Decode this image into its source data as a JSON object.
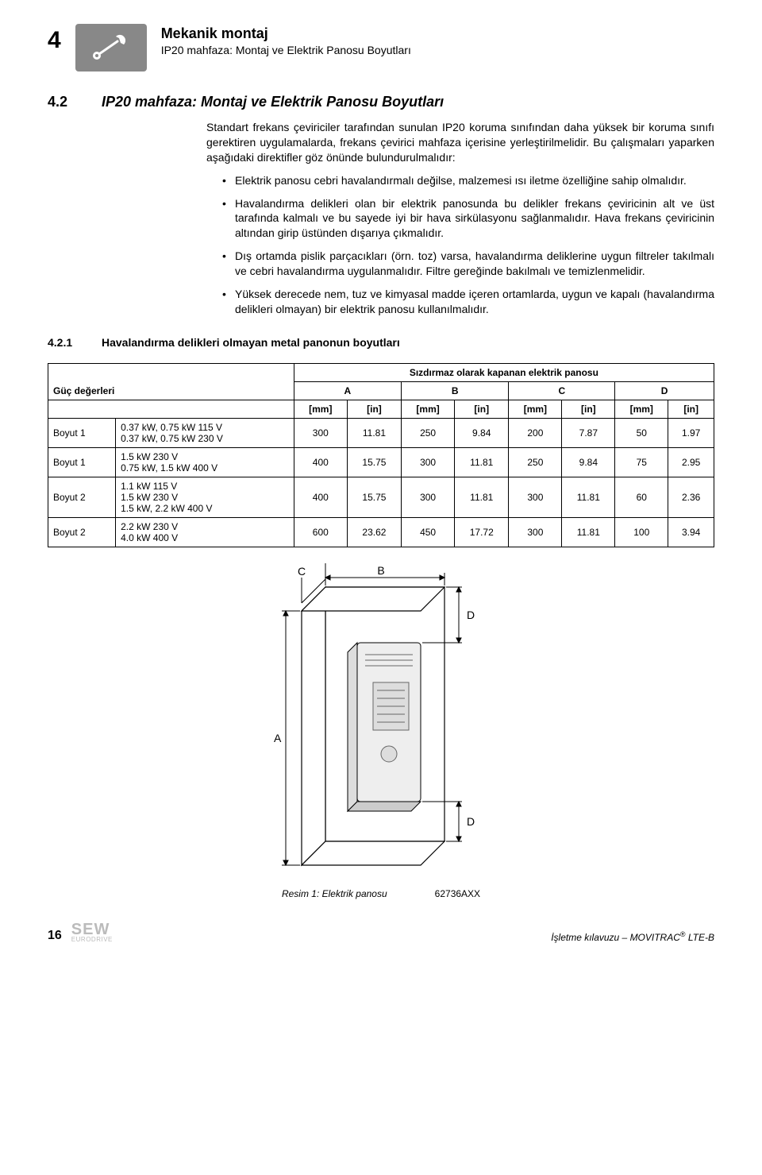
{
  "header": {
    "chapter_number": "4",
    "title": "Mekanik montaj",
    "subtitle": "IP20 mahfaza: Montaj ve Elektrik Panosu Boyutları"
  },
  "section": {
    "number": "4.2",
    "title": "IP20 mahfaza: Montaj ve Elektrik Panosu Boyutları",
    "intro": "Standart frekans çeviriciler tarafından sunulan IP20 koruma sınıfından daha yüksek bir koruma sınıfı gerektiren uygulamalarda, frekans çevirici mahfaza içerisine yerleştirilmelidir. Bu çalışmaları yaparken aşağıdaki direktifler göz önünde bulundurulmalıdır:",
    "bullets": [
      "Elektrik panosu cebri havalandırmalı değilse, malzemesi ısı iletme özelliğine sahip olmalıdır.",
      "Havalandırma delikleri olan bir elektrik panosunda bu delikler frekans çeviricinin alt ve üst tarafında kalmalı ve bu sayede iyi bir hava sirkülasyonu sağlanmalıdır. Hava frekans çeviricinin altından girip üstünden dışarıya çıkmalıdır.",
      "Dış ortamda pislik parçacıkları (örn. toz) varsa, havalandırma deliklerine uygun filtreler takılmalı ve cebri havalandırma uygulanmalıdır. Filtre gereğinde bakılmalı ve temizlenmelidir.",
      "Yüksek derecede nem, tuz ve kimyasal madde içeren ortamlarda, uygun ve kapalı (havalandırma delikleri olmayan) bir elektrik panosu kullanılmalıdır."
    ]
  },
  "subsection": {
    "number": "4.2.1",
    "title": "Havalandırma delikleri olmayan metal panonun boyutları"
  },
  "table": {
    "caption_top": "Sızdırmaz olarak kapanan elektrik panosu",
    "power_label": "Güç değerleri",
    "group_headers": [
      "A",
      "B",
      "C",
      "D"
    ],
    "unit_headers": [
      "[mm]",
      "[in]",
      "[mm]",
      "[in]",
      "[mm]",
      "[in]",
      "[mm]",
      "[in]"
    ],
    "rows": [
      {
        "size": "Boyut 1",
        "power": "0.37 kW, 0.75 kW 115 V\n0.37 kW, 0.75 kW 230 V",
        "vals": [
          "300",
          "11.81",
          "250",
          "9.84",
          "200",
          "7.87",
          "50",
          "1.97"
        ]
      },
      {
        "size": "Boyut 1",
        "power": "1.5 kW 230 V\n0.75 kW, 1.5 kW 400 V",
        "vals": [
          "400",
          "15.75",
          "300",
          "11.81",
          "250",
          "9.84",
          "75",
          "2.95"
        ]
      },
      {
        "size": "Boyut 2",
        "power": "1.1 kW 115 V\n1.5 kW 230 V\n1.5 kW, 2.2 kW 400 V",
        "vals": [
          "400",
          "15.75",
          "300",
          "11.81",
          "300",
          "11.81",
          "60",
          "2.36"
        ]
      },
      {
        "size": "Boyut 2",
        "power": "2.2 kW 230 V\n4.0 kW 400 V",
        "vals": [
          "600",
          "23.62",
          "450",
          "17.72",
          "300",
          "11.81",
          "100",
          "3.94"
        ]
      }
    ]
  },
  "figure": {
    "labels": {
      "A": "A",
      "B": "B",
      "C": "C",
      "D": "D"
    },
    "caption": "Resim 1:  Elektrik panosu",
    "code": "62736AXX"
  },
  "footer": {
    "page": "16",
    "logo_main": "SEW",
    "logo_sub": "EURODRIVE",
    "manual": "İşletme kılavuzu – MOVITRAC",
    "manual_sup": "®",
    "manual_suffix": " LTE-B"
  },
  "colors": {
    "icon_box_bg": "#888888",
    "text": "#000000",
    "logo_gray": "#bbbbbb"
  }
}
